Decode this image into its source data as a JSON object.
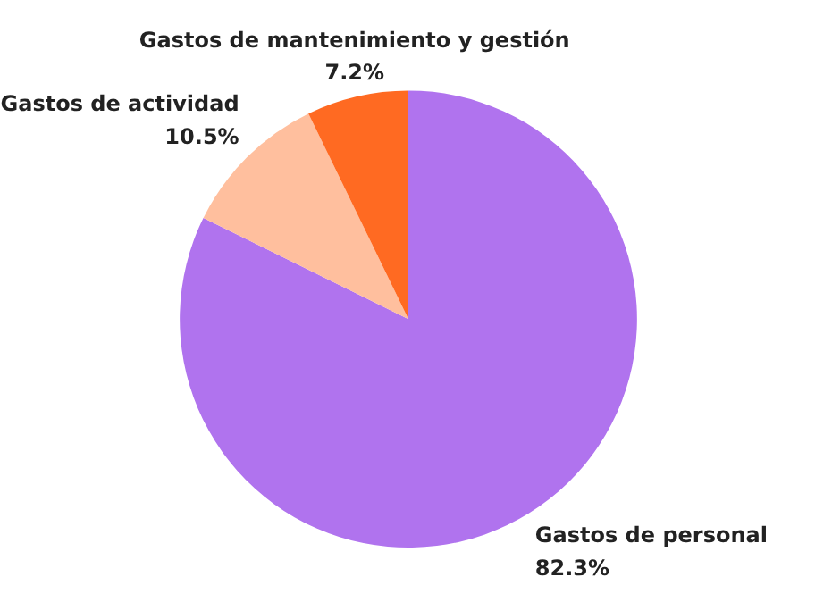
{
  "chart_data": {
    "type": "pie",
    "categories": [
      "Gastos de personal",
      "Gastos de actividad",
      "Gastos de mantenimiento y gestión"
    ],
    "values": [
      82.3,
      10.5,
      7.2
    ],
    "value_labels": [
      "82.3%",
      "10.5%",
      "7.2%"
    ],
    "colors": [
      "#b073ee",
      "#ffbf9e",
      "#ff6a22"
    ],
    "legend": false
  }
}
